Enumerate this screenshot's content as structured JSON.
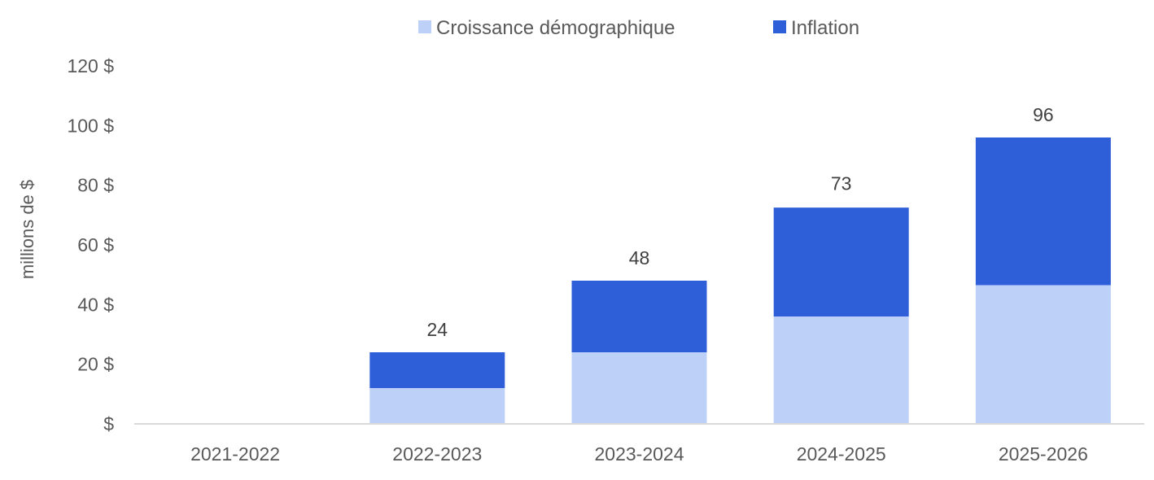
{
  "chart_data": {
    "type": "bar",
    "stacked": true,
    "categories": [
      "2021-2022",
      "2022-2023",
      "2023-2024",
      "2024-2025",
      "2025-2026"
    ],
    "series": [
      {
        "name": "Croissance démographique",
        "color": "#BDD0F7",
        "values": [
          0,
          12,
          24,
          36,
          46.5
        ]
      },
      {
        "name": "Inflation",
        "color": "#2F5FD8",
        "values": [
          0,
          12,
          24,
          36.5,
          49.5
        ]
      }
    ],
    "totals": [
      null,
      24,
      48,
      73,
      96
    ],
    "total_labels": [
      "",
      "24",
      "48",
      "73",
      "96"
    ],
    "ylabel": "millions de $",
    "ylim": [
      0,
      120
    ],
    "yticks": [
      0,
      20,
      40,
      60,
      80,
      100,
      120
    ],
    "ytick_labels": [
      "$",
      "20 $",
      "40 $",
      "60 $",
      "80 $",
      "100 $",
      "120 $"
    ],
    "grid": false,
    "legend_position": "top"
  }
}
